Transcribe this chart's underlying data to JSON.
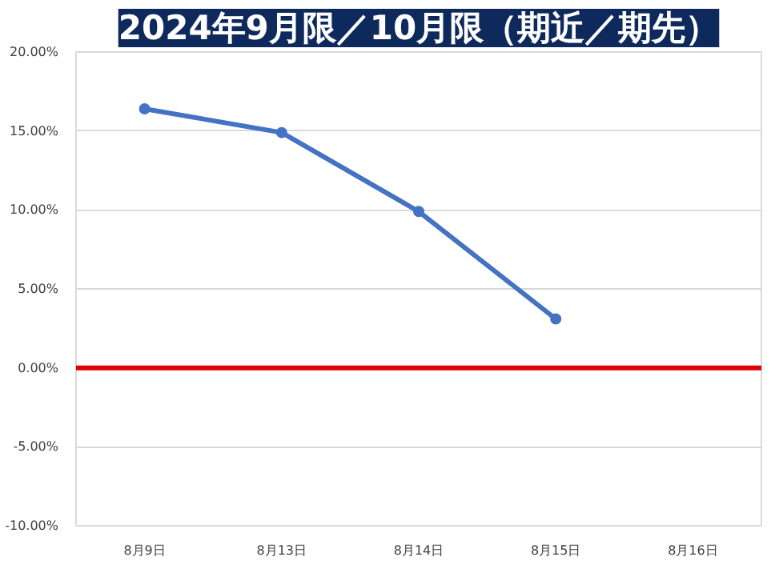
{
  "chart_data": {
    "type": "line",
    "title": "2024年9月限／10月限（期近／期先）",
    "categories": [
      "8月9日",
      "8月13日",
      "8月14日",
      "8月15日",
      "8月16日"
    ],
    "series": [
      {
        "color": "#4472c4",
        "values": [
          16.4,
          14.9,
          9.9,
          3.1,
          null
        ]
      }
    ],
    "ylim": [
      -10,
      20
    ],
    "yticks": [
      {
        "value": -10,
        "label": "-10.00%"
      },
      {
        "value": -5,
        "label": "-5.00%"
      },
      {
        "value": 0,
        "label": "0.00%"
      },
      {
        "value": 5,
        "label": "5.00%"
      },
      {
        "value": 10,
        "label": "10.00%"
      },
      {
        "value": 15,
        "label": "15.00%"
      },
      {
        "value": 20,
        "label": "20.00%"
      }
    ],
    "ref_lines": [
      {
        "axis": "y",
        "value": 0,
        "color": "#e00000"
      }
    ],
    "grid": "y",
    "marker": "circle",
    "line_style": "solid"
  }
}
